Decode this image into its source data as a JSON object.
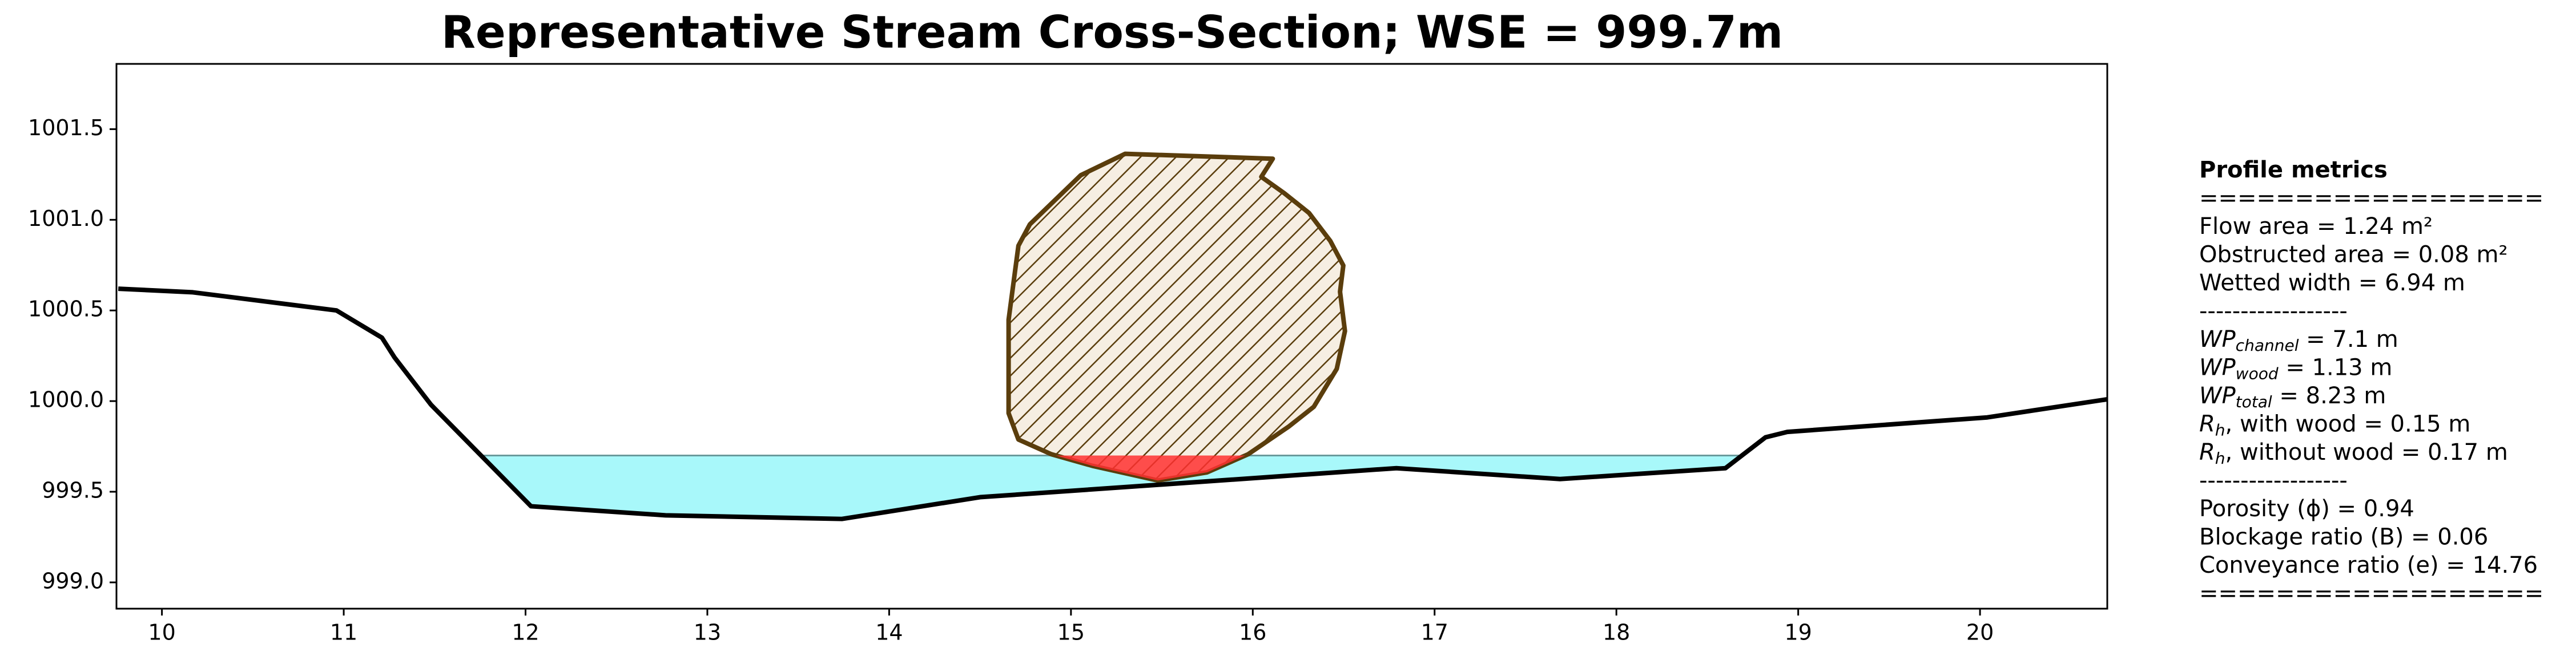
{
  "chart_data": {
    "type": "cross-section",
    "title": "Representative Stream Cross-Section; WSE = 999.7m",
    "xlim": [
      9.75,
      20.7
    ],
    "ylim": [
      998.855,
      1001.86
    ],
    "xticks": [
      10,
      11,
      12,
      13,
      14,
      15,
      16,
      17,
      18,
      19,
      20
    ],
    "yticks": [
      {
        "value": 999,
        "label": "999.0"
      },
      999.5,
      {
        "value": 1000,
        "label": "1000.0"
      },
      1000.5,
      {
        "value": 1001,
        "label": "1001.0"
      },
      1001.5
    ],
    "wse": 999.7,
    "ground": {
      "x": [
        9.76,
        10.17,
        10.96,
        11.21,
        11.28,
        11.48,
        12.03,
        12.77,
        13.74,
        14.5,
        16.79,
        17.69,
        18.6,
        18.82,
        18.94,
        20.04,
        20.7
      ],
      "y": [
        1000.62,
        1000.6,
        1000.5,
        1000.35,
        1000.24,
        999.98,
        999.42,
        999.37,
        999.35,
        999.47,
        999.63,
        999.57,
        999.63,
        999.8,
        999.83,
        999.91,
        1000.01
      ]
    },
    "wood": {
      "x": [
        14.711,
        14.657,
        14.657,
        14.711,
        14.774,
        15.054,
        15.298,
        16.11,
        16.047,
        16.173,
        16.309,
        16.426,
        16.498,
        16.48,
        16.507,
        16.462,
        16.336,
        16.2,
        15.975,
        15.749,
        15.478,
        15.117,
        14.892
      ],
      "y": [
        999.788,
        999.933,
        1000.449,
        1000.857,
        1000.975,
        1001.246,
        1001.364,
        1001.337,
        1001.237,
        1001.147,
        1001.038,
        1000.884,
        1000.748,
        1000.603,
        1000.386,
        1000.178,
        999.969,
        999.861,
        999.707,
        999.607,
        999.562,
        999.643,
        999.707
      ]
    },
    "ground_color": "#000000",
    "water_color": "#a8f8fa",
    "wse_color": "#6a9a9c",
    "wood_color": "#5a3d0c",
    "wood_fill": "#f6eee2",
    "submerged_color": "#ff3030",
    "metrics": [
      "Profile metrics",
      "==================",
      "Flow area = 1.24 m²",
      "Obstructed area = 0.08 m²",
      "Wetted width = 6.94 m",
      "------------------",
      {
        "main": "WP",
        "sub": "channel",
        "tail": " = 7.1 m"
      },
      {
        "main": "WP",
        "sub": "wood",
        "tail": " = 1.13 m"
      },
      {
        "main": "WP",
        "sub": "total",
        "tail": " = 8.23 m"
      },
      {
        "main": "R",
        "sub": "h",
        "tail": ", with wood = 0.15 m"
      },
      {
        "main": "R",
        "sub": "h",
        "tail": ", without wood = 0.17 m"
      },
      "------------------",
      "Porosity (ϕ) = 0.94",
      "Blockage ratio (B) = 0.06",
      "Conveyance ratio (e) = 14.76",
      "=================="
    ]
  }
}
